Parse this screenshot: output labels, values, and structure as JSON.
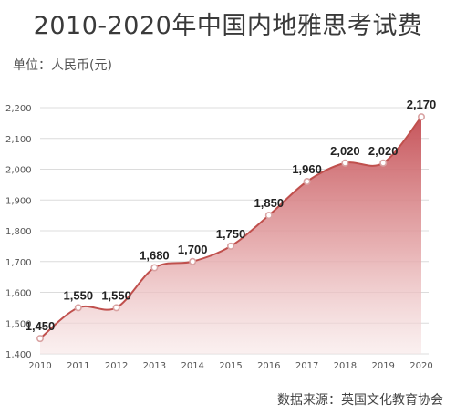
{
  "title": "2010-2020年中国内地雅思考试费",
  "unit_label": "单位：人民币(元)",
  "source": "数据来源：英国文化教育协会",
  "colors": {
    "line": "#c0504d",
    "fill_top": "#c6545a",
    "point": "#d9a3a3"
  },
  "chart_data": {
    "type": "area",
    "x": [
      "2010",
      "2011",
      "2012",
      "2013",
      "2014",
      "2015",
      "2016",
      "2017",
      "2018",
      "2019",
      "2020"
    ],
    "values": [
      1450,
      1550,
      1550,
      1680,
      1700,
      1750,
      1850,
      1960,
      2020,
      2020,
      2170
    ],
    "data_labels": [
      "1,450",
      "1,550",
      "1,550",
      "1,680",
      "1,700",
      "1,750",
      "1,850",
      "1,960",
      "2,020",
      "2,020",
      "2,170"
    ],
    "yticks": [
      "1,400",
      "1,500",
      "1,600",
      "1,700",
      "1,800",
      "1,900",
      "2,000",
      "2,100",
      "2,200"
    ],
    "ylim": [
      1400,
      2200
    ],
    "grid": true
  }
}
